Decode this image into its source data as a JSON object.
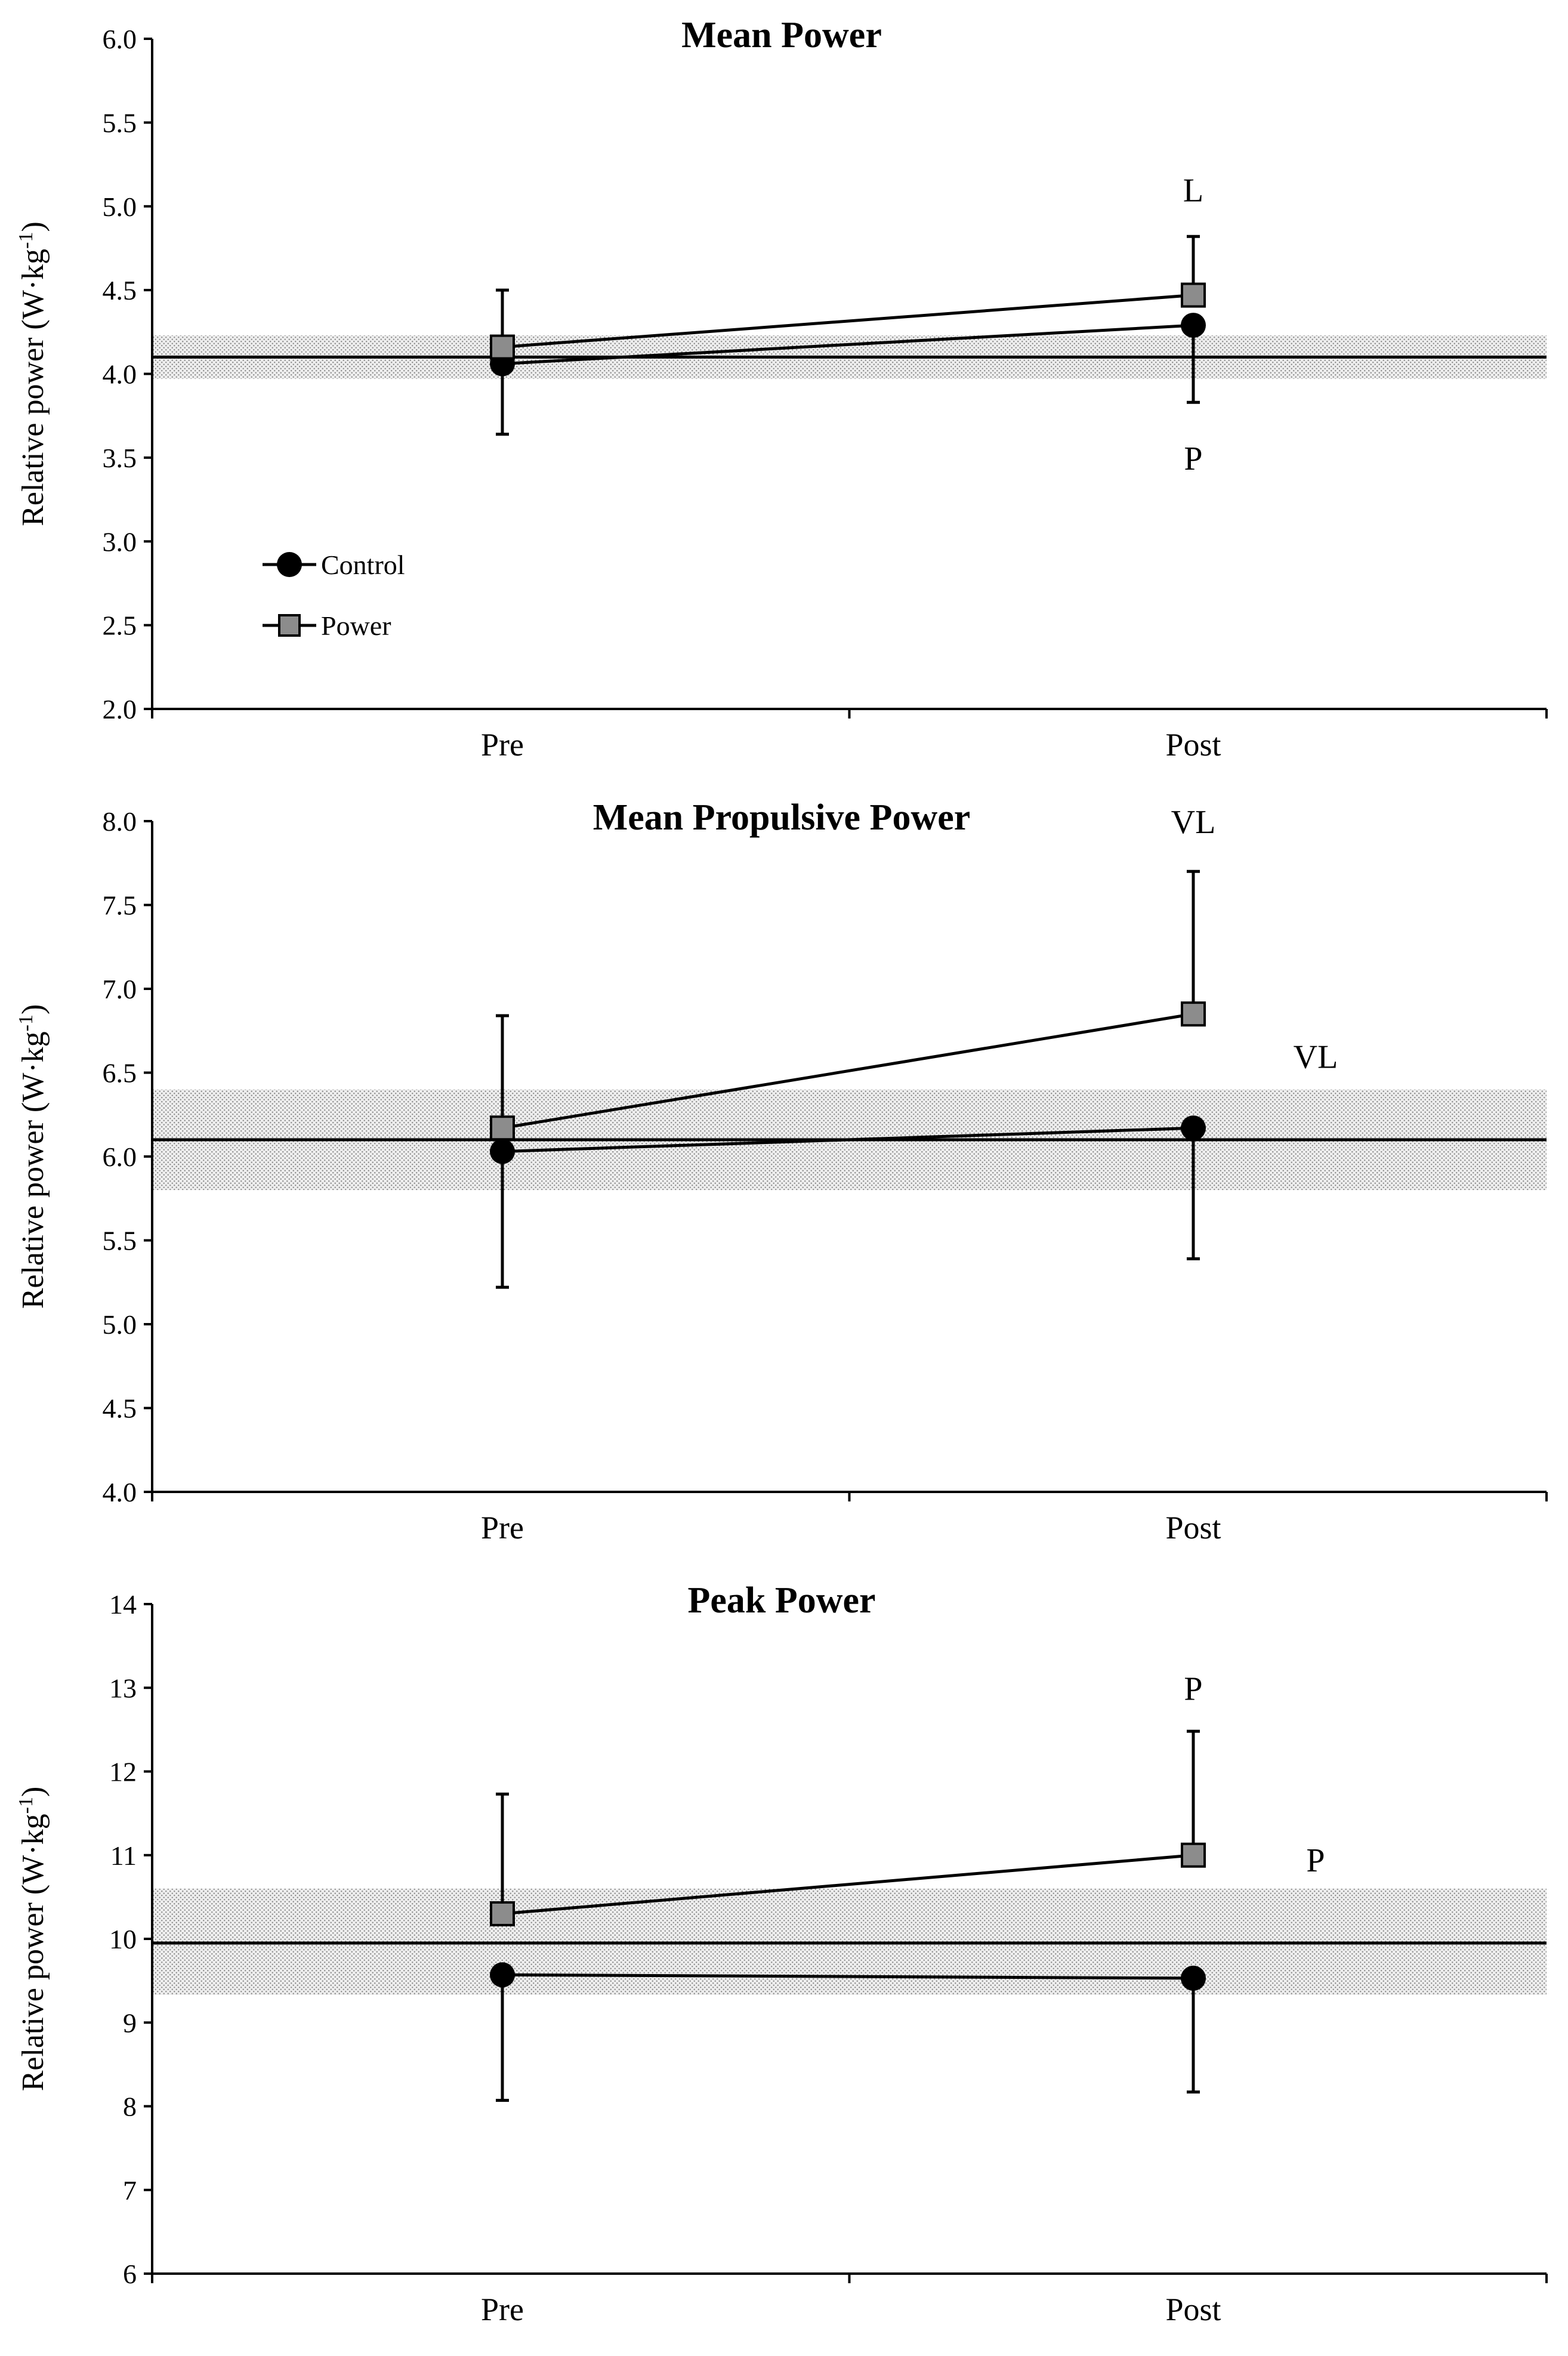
{
  "chart_data": [
    {
      "type": "line",
      "title": "Mean Power",
      "ylabel_prefix": "Relative power (W·kg",
      "ylabel_sup": "-1",
      "ylabel_suffix": ")",
      "categories": [
        "Pre",
        "Post"
      ],
      "ylim": [
        2.0,
        6.0
      ],
      "yticks": [
        "2.0",
        "2.5",
        "3.0",
        "3.5",
        "4.0",
        "4.5",
        "5.0",
        "5.5",
        "6.0"
      ],
      "reference": {
        "value": 4.1,
        "band": [
          3.97,
          4.23
        ]
      },
      "series": [
        {
          "name": "Control",
          "marker": "circle",
          "values": [
            4.06,
            4.29
          ],
          "error_lower": [
            0.42,
            0.46
          ],
          "error_upper": [
            0,
            0
          ]
        },
        {
          "name": "Power",
          "marker": "square",
          "values": [
            4.16,
            4.47
          ],
          "error_lower": [
            0,
            0
          ],
          "error_upper": [
            0.34,
            0.35
          ]
        }
      ],
      "annotations": [
        {
          "text": "L",
          "x": "Post",
          "y": 5.1
        },
        {
          "text": "P",
          "x": "Post",
          "y": 3.5
        }
      ],
      "legend": {
        "show": true,
        "placement": "lower-left",
        "entries": [
          "Control",
          "Power"
        ]
      }
    },
    {
      "type": "line",
      "title": "Mean Propulsive Power",
      "ylabel_prefix": "Relative power (W·kg",
      "ylabel_sup": "-1",
      "ylabel_suffix": ")",
      "categories": [
        "Pre",
        "Post"
      ],
      "ylim": [
        4.0,
        8.0
      ],
      "yticks": [
        "4.0",
        "4.5",
        "5.0",
        "5.5",
        "6.0",
        "6.5",
        "7.0",
        "7.5",
        "8.0"
      ],
      "reference": {
        "value": 6.1,
        "band": [
          5.8,
          6.4
        ]
      },
      "series": [
        {
          "name": "Control",
          "marker": "circle",
          "values": [
            6.03,
            6.17
          ],
          "error_lower": [
            0.81,
            0.78
          ],
          "error_upper": [
            0,
            0
          ]
        },
        {
          "name": "Power",
          "marker": "square",
          "values": [
            6.17,
            6.85
          ],
          "error_lower": [
            0,
            0
          ],
          "error_upper": [
            0.67,
            0.85
          ]
        }
      ],
      "annotations": [
        {
          "text": "VL",
          "x": "Post",
          "y": 8.0
        },
        {
          "text": "VL",
          "x": "beyond-Post",
          "y": 6.6
        }
      ],
      "legend": {
        "show": false
      }
    },
    {
      "type": "line",
      "title": "Peak Power",
      "ylabel_prefix": "Relative power (W·kg",
      "ylabel_sup": "-1",
      "ylabel_suffix": ")",
      "categories": [
        "Pre",
        "Post"
      ],
      "ylim": [
        6,
        14
      ],
      "yticks": [
        "6",
        "7",
        "8",
        "9",
        "10",
        "11",
        "12",
        "13",
        "14"
      ],
      "reference": {
        "value": 9.95,
        "band": [
          9.33,
          10.6
        ]
      },
      "series": [
        {
          "name": "Control",
          "marker": "circle",
          "values": [
            9.57,
            9.53
          ],
          "error_lower": [
            1.5,
            1.36
          ],
          "error_upper": [
            0,
            0
          ]
        },
        {
          "name": "Power",
          "marker": "square",
          "values": [
            10.3,
            11.0
          ],
          "error_lower": [
            0,
            0
          ],
          "error_upper": [
            1.43,
            1.48
          ]
        }
      ],
      "annotations": [
        {
          "text": "P",
          "x": "Post",
          "y": 13.0
        },
        {
          "text": "P",
          "x": "beyond-Post",
          "y": 10.95
        }
      ],
      "legend": {
        "show": false
      }
    }
  ]
}
